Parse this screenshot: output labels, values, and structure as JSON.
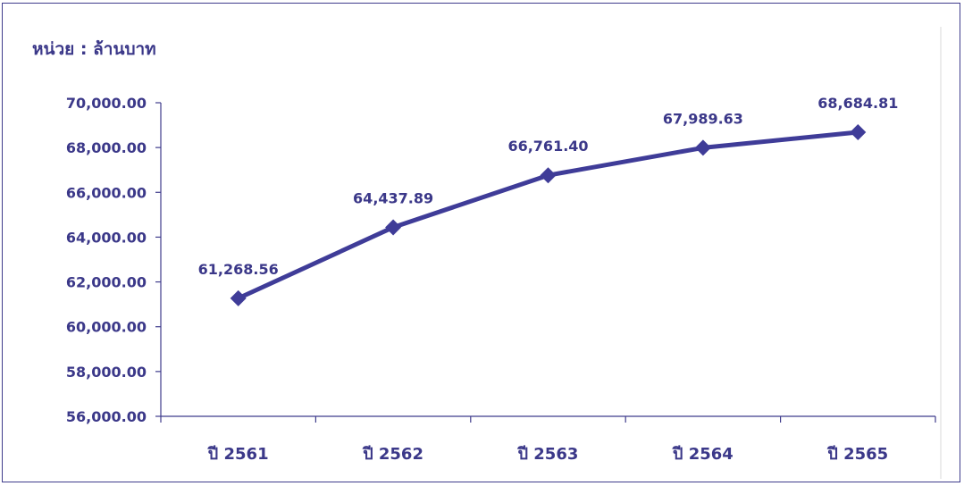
{
  "unit_label": "หน่วย : ล้านบาท",
  "colors": {
    "series": "#3f3c98",
    "text": "#3b3889",
    "axis": "#3f3c8c"
  },
  "chart_data": {
    "type": "line",
    "title": "",
    "xlabel": "",
    "ylabel": "หน่วย : ล้านบาท",
    "categories": [
      "ปี 2561",
      "ปี 2562",
      "ปี 2563",
      "ปี 2564",
      "ปี 2565"
    ],
    "series": [
      {
        "values": [
          61268.56,
          64437.89,
          66761.4,
          67989.63,
          68684.81
        ],
        "data_labels": [
          "61,268.56",
          "64,437.89",
          "66,761.40",
          "67,989.63",
          "68,684.81"
        ],
        "marker": "diamond"
      }
    ],
    "ylim": [
      56000,
      70000
    ],
    "yticks": [
      56000,
      58000,
      60000,
      62000,
      64000,
      66000,
      68000,
      70000
    ],
    "ytick_labels": [
      "56,000.00",
      "58,000.00",
      "60,000.00",
      "62,000.00",
      "64,000.00",
      "66,000.00",
      "68,000.00",
      "70,000.00"
    ],
    "grid": false,
    "legend": "none"
  }
}
